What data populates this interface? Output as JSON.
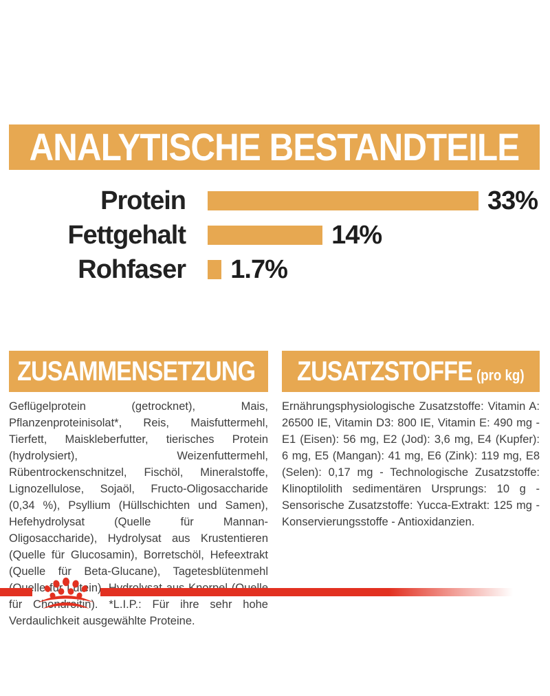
{
  "page": {
    "background": "#ffffff",
    "accent_gold": "#E7A851",
    "accent_red": "#E23121",
    "body_text_color": "#3d3d3d"
  },
  "header": {
    "title": "ANALYTISCHE BESTANDTEILE"
  },
  "chart_data": {
    "type": "bar",
    "orientation": "horizontal",
    "title": "ANALYTISCHE BESTANDTEILE",
    "categories": [
      "Protein",
      "Fettgehalt",
      "Rohfaser"
    ],
    "values": [
      33,
      14,
      1.7
    ],
    "value_labels": [
      "33%",
      "14%",
      "1.7%"
    ],
    "xlim": [
      0,
      33
    ],
    "bar_color": "#E7A851",
    "grid": false,
    "legend": false,
    "xlabel": "",
    "ylabel": ""
  },
  "sections": [
    {
      "title": "ZUSAMMENSETZUNG",
      "title_suffix": "",
      "body": "Geflügelprotein (getrocknet), Mais, Pflanzenproteinisolat*, Reis, Maisfuttermehl, Tierfett, Maiskleberfutter, tierisches Protein (hydrolysiert), Weizenfuttermehl, Rübentrockenschnitzel, Fischöl, Mineralstoffe, Lignozellulose, Sojaöl, Fructo-Oligosaccharide (0,34 %), Psyllium (Hüllschichten und Samen), Hefehydrolysat (Quelle für Mannan-Oligosaccharide), Hydrolysat aus Krustentieren (Quelle für Glucosamin), Borretschöl, Hefeextrakt (Quelle für Beta-Glucane), Tagetesblütenmehl (Quelle für Lutein), Hydrolysat aus Knorpel (Quelle für Chondroitin). *L.I.P.: Für ihre sehr hohe Verdaulichkeit ausgewählte Proteine."
    },
    {
      "title": "ZUSATZSTOFFE",
      "title_suffix": "(pro kg)",
      "body": "Ernährungsphysiologische Zusatzstoffe: Vitamin A: 26500 IE, Vitamin D3: 800 IE, Vitamin E: 490 mg - E1 (Eisen): 56 mg, E2 (Jod): 3,6 mg, E4 (Kupfer): 6 mg, E5 (Mangan): 41 mg, E6 (Zink): 119 mg, E8 (Selen): 0,17 mg - Technologische Zusatzstoffe: Klinoptilolith sedimentären Ursprungs: 10 g - Sensorische Zusatzstoffe: Yucca-Extrakt: 125 mg - Konservierungsstoffe - Antioxidanzien."
    }
  ],
  "footer": {
    "brand_icon": "royal-canin-crown-icon"
  }
}
